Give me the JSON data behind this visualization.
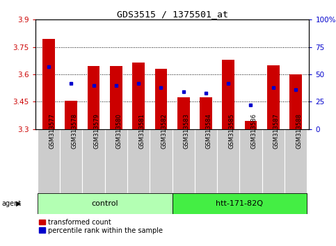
{
  "title": "GDS3515 / 1375501_at",
  "samples": [
    "GSM313577",
    "GSM313578",
    "GSM313579",
    "GSM313580",
    "GSM313581",
    "GSM313582",
    "GSM313583",
    "GSM313584",
    "GSM313585",
    "GSM313586",
    "GSM313587",
    "GSM313588"
  ],
  "red_values": [
    3.795,
    3.455,
    3.645,
    3.645,
    3.665,
    3.63,
    3.475,
    3.475,
    3.68,
    3.345,
    3.65,
    3.6
  ],
  "blue_values": [
    57,
    42,
    40,
    40,
    42,
    38,
    34,
    33,
    42,
    22,
    38,
    36
  ],
  "y_min": 3.3,
  "y_max": 3.9,
  "y_ticks_left": [
    3.3,
    3.45,
    3.6,
    3.75,
    3.9
  ],
  "y_ticks_right": [
    0,
    25,
    50,
    75,
    100
  ],
  "groups": [
    {
      "label": "control",
      "start": 0,
      "end": 6
    },
    {
      "label": "htt-171-82Q",
      "start": 6,
      "end": 12
    }
  ],
  "bar_color": "#cc0000",
  "dot_color": "#0000cc",
  "left_tick_color": "#cc0000",
  "right_tick_color": "#0000cc",
  "legend_red": "transformed count",
  "legend_blue": "percentile rank within the sample",
  "agent_label": "agent",
  "group_bg_light": "#b3ffb3",
  "group_bg_dark": "#44ee44",
  "bar_width": 0.55,
  "tick_area_bg": "#cccccc",
  "grid_lines": [
    3.45,
    3.6,
    3.75
  ]
}
